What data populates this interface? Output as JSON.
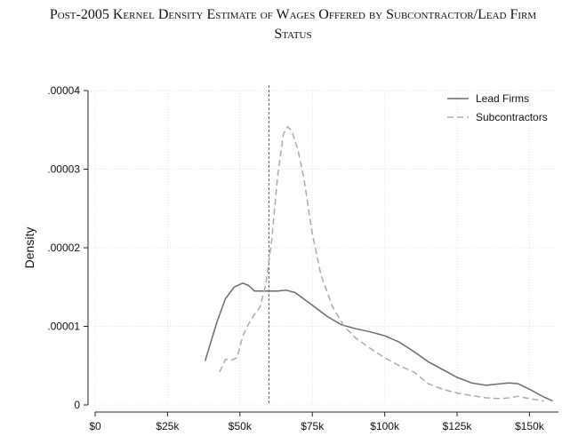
{
  "title_lines": [
    "Post-2005 Kernel Density Estimate of Wages Offered by Subcontractor/Lead Firm",
    "Status"
  ],
  "colors": {
    "lead_firms": "#6b6b6b",
    "subcontractors": "#aaaaaa",
    "grid": "#d9d9d9",
    "threshold": "#555555"
  },
  "chart_data": {
    "type": "line",
    "title": "Post-2005 Kernel Density Estimate of Wages Offered by Subcontractor/Lead Firm Status",
    "xlabel": "",
    "ylabel": "Density",
    "xlim": [
      0,
      160000
    ],
    "ylim": [
      0,
      4e-05
    ],
    "x_ticks": [
      0,
      25000,
      50000,
      75000,
      100000,
      125000,
      150000
    ],
    "x_tick_labels": [
      "$0",
      "$25k",
      "$50k",
      "$75k",
      "$100k",
      "$125k",
      "$150k"
    ],
    "y_ticks": [
      0,
      1e-05,
      2e-05,
      3e-05,
      4e-05
    ],
    "y_tick_labels": [
      "0",
      ".00001",
      ".00002",
      ".00003",
      ".00004"
    ],
    "grid": true,
    "legend_position": "top-right",
    "reference_line": {
      "x": 60000,
      "style": "dashed"
    },
    "series": [
      {
        "name": "Lead Firms",
        "style": "solid",
        "x": [
          38000,
          42000,
          45000,
          48000,
          51000,
          53000,
          55000,
          57000,
          60000,
          63000,
          66000,
          69000,
          72000,
          75000,
          80000,
          85000,
          90000,
          95000,
          100000,
          105000,
          110000,
          115000,
          120000,
          125000,
          130000,
          135000,
          140000,
          143000,
          146000,
          150000,
          155000,
          158000
        ],
        "y": [
          5.6e-06,
          1.05e-05,
          1.35e-05,
          1.5e-05,
          1.55e-05,
          1.52e-05,
          1.45e-05,
          1.45e-05,
          1.45e-05,
          1.45e-05,
          1.46e-05,
          1.43e-05,
          1.35e-05,
          1.27e-05,
          1.13e-05,
          1.02e-05,
          9.7e-06,
          9.3e-06,
          8.8e-06,
          8e-06,
          6.8e-06,
          5.5e-06,
          4.5e-06,
          3.5e-06,
          2.8e-06,
          2.5e-06,
          2.7e-06,
          2.8e-06,
          2.7e-06,
          2e-06,
          1e-06,
          5e-07
        ]
      },
      {
        "name": "Subcontractors",
        "style": "dashed",
        "x": [
          43000,
          45000,
          47000,
          49000,
          51000,
          53000,
          55000,
          57000,
          59000,
          61000,
          63000,
          65000,
          66500,
          68000,
          70000,
          72000,
          75000,
          78000,
          82000,
          86000,
          90000,
          95000,
          100000,
          105000,
          110000,
          115000,
          120000,
          125000,
          130000,
          135000,
          140000,
          143000,
          146000,
          150000,
          155000
        ],
        "y": [
          4.2e-06,
          5.8e-06,
          5.7e-06,
          6e-06,
          8.8e-06,
          1.03e-05,
          1.15e-05,
          1.25e-05,
          1.55e-05,
          2.1e-05,
          2.9e-05,
          3.45e-05,
          3.54e-05,
          3.48e-05,
          3.25e-05,
          2.9e-05,
          2.18e-05,
          1.65e-05,
          1.25e-05,
          1e-05,
          8.5e-06,
          7.2e-06,
          6e-06,
          5e-06,
          4.2e-06,
          2.7e-06,
          2e-06,
          1.5e-06,
          1.2e-06,
          9e-07,
          8e-07,
          9e-07,
          1.1e-06,
          8e-07,
          5e-07
        ]
      }
    ]
  }
}
